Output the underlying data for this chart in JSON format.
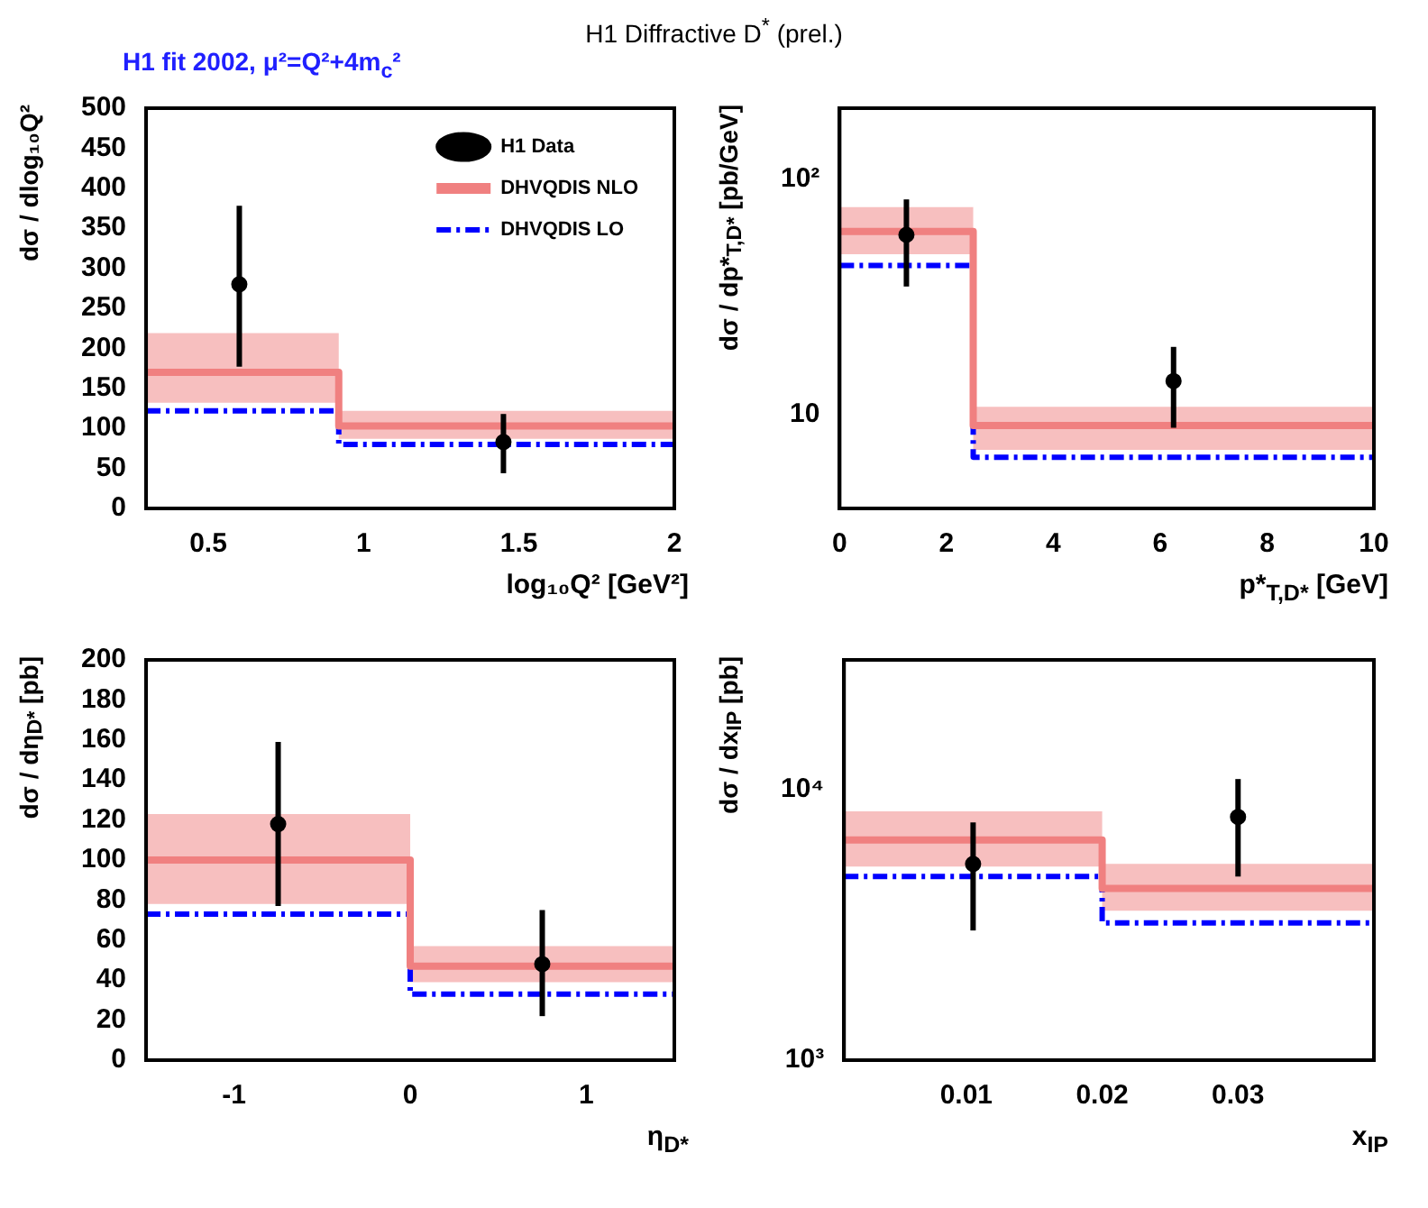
{
  "chart_data": [
    {
      "type": "step",
      "title": "H1 Diffractive D$^{*}$ (prel.)",
      "subtitle": "H1 fit 2002, μ²=Q²+4m$_{c}$²",
      "xlabel": "log₁₀Q² [GeV²]",
      "ylabel": "dσ / dlog₁₀Q²",
      "xlim": [
        0.3,
        2
      ],
      "xticks": [
        0.5,
        1,
        1.5,
        2
      ],
      "ylim": [
        0,
        500
      ],
      "yticks": [
        0,
        50,
        100,
        150,
        200,
        250,
        300,
        350,
        400,
        450,
        500
      ],
      "legend": "top right",
      "series": [
        {
          "name": "H1 Data",
          "type": "scatter",
          "marker": "circle",
          "color": "#000000",
          "x": [
            0.6,
            1.45
          ],
          "values": [
            280,
            83
          ],
          "errors": [
            [
              177,
              378
            ],
            [
              44,
              118
            ]
          ]
        },
        {
          "name": "DHVQDIS NLO",
          "type": "step",
          "color": "#f08080",
          "x": [
            0.3,
            0.92,
            2
          ],
          "values": [
            170,
            103,
            103
          ],
          "lower": [
            132,
            87,
            87
          ],
          "upper": [
            219,
            122,
            122
          ]
        },
        {
          "name": "DHVQDIS LO",
          "type": "step",
          "color": "#0000ff",
          "line_style": "dashed",
          "x": [
            0.3,
            0.92,
            2
          ],
          "values": [
            122,
            80,
            80
          ]
        }
      ]
    },
    {
      "type": "step",
      "xlabel": "p*$_{T,D*}$ [GeV]",
      "ylabel": "dσ / dp*$_{T,D*}$ [pb/GeV]",
      "log": "y",
      "xlim": [
        0,
        10
      ],
      "xticks": [
        0,
        2,
        4,
        6,
        8,
        10
      ],
      "ylim": [
        4,
        200
      ],
      "yticks": [
        10,
        {
          "value": 100,
          "label": "10²"
        }
      ],
      "legend": false,
      "series": [
        {
          "type": "scatter",
          "marker": "circle",
          "color": "#000000",
          "x": [
            1.25,
            6.25
          ],
          "values": [
            58,
            13.9
          ],
          "errors": [
            [
              35,
              82
            ],
            [
              8.8,
              19.4
            ]
          ]
        },
        {
          "type": "step",
          "color": "#f08080",
          "x": [
            0,
            2.5,
            10
          ],
          "values": [
            60,
            9,
            9
          ],
          "lower": [
            48,
            7.1,
            7.1
          ],
          "upper": [
            76,
            10.8,
            10.8
          ]
        },
        {
          "type": "step",
          "color": "#0000ff",
          "line_style": "dashed",
          "x": [
            0,
            2.5,
            10
          ],
          "values": [
            43,
            6.6,
            6.6
          ]
        }
      ]
    },
    {
      "type": "step",
      "xlabel": "η$_{D*}$",
      "ylabel": "dσ / dη$_{D*}$ [pb]",
      "xlim": [
        -1.5,
        1.5
      ],
      "xticks": [
        -1,
        0,
        1
      ],
      "ylim": [
        0,
        200
      ],
      "yticks": [
        0,
        20,
        40,
        60,
        80,
        100,
        120,
        140,
        160,
        180,
        200
      ],
      "legend": false,
      "series": [
        {
          "type": "scatter",
          "marker": "circle",
          "color": "#000000",
          "x": [
            -0.75,
            0.75
          ],
          "values": [
            118,
            48
          ],
          "errors": [
            [
              77,
              159
            ],
            [
              22,
              75
            ]
          ]
        },
        {
          "type": "step",
          "color": "#f08080",
          "x": [
            -1.5,
            0,
            1.5
          ],
          "values": [
            100,
            47,
            47
          ],
          "lower": [
            78,
            39,
            39
          ],
          "upper": [
            123,
            57,
            57
          ]
        },
        {
          "type": "step",
          "color": "#0000ff",
          "line_style": "dashed",
          "x": [
            -1.5,
            0,
            1.5
          ],
          "values": [
            73,
            33,
            33
          ]
        }
      ]
    },
    {
      "type": "step",
      "xlabel": "x$_{IP}$",
      "ylabel": "dσ / dx$_{IP}$ [pb]",
      "log": "y",
      "xlim": [
        0.001,
        0.04
      ],
      "xticks": [
        0.01,
        0.02,
        0.03
      ],
      "ylim": [
        1000,
        30000
      ],
      "yticks": [
        {
          "value": 1000,
          "label": "10³"
        },
        {
          "value": 10000,
          "label": "10⁴"
        }
      ],
      "legend": false,
      "series": [
        {
          "type": "scatter",
          "marker": "circle",
          "color": "#000000",
          "x": [
            0.0105,
            0.03
          ],
          "values": [
            5300,
            7900
          ],
          "errors": [
            [
              3010,
              7540
            ],
            [
              4760,
              10900
            ]
          ]
        },
        {
          "type": "step",
          "color": "#f08080",
          "x": [
            0.001,
            0.02,
            0.04
          ],
          "values": [
            6500,
            4300,
            4300
          ],
          "lower": [
            5180,
            3560,
            3560
          ],
          "upper": [
            8290,
            5300,
            5300
          ]
        },
        {
          "type": "step",
          "color": "#0000ff",
          "line_style": "dashed",
          "x": [
            0.001,
            0.02,
            0.04
          ],
          "values": [
            4760,
            3210,
            3210
          ]
        }
      ]
    }
  ]
}
